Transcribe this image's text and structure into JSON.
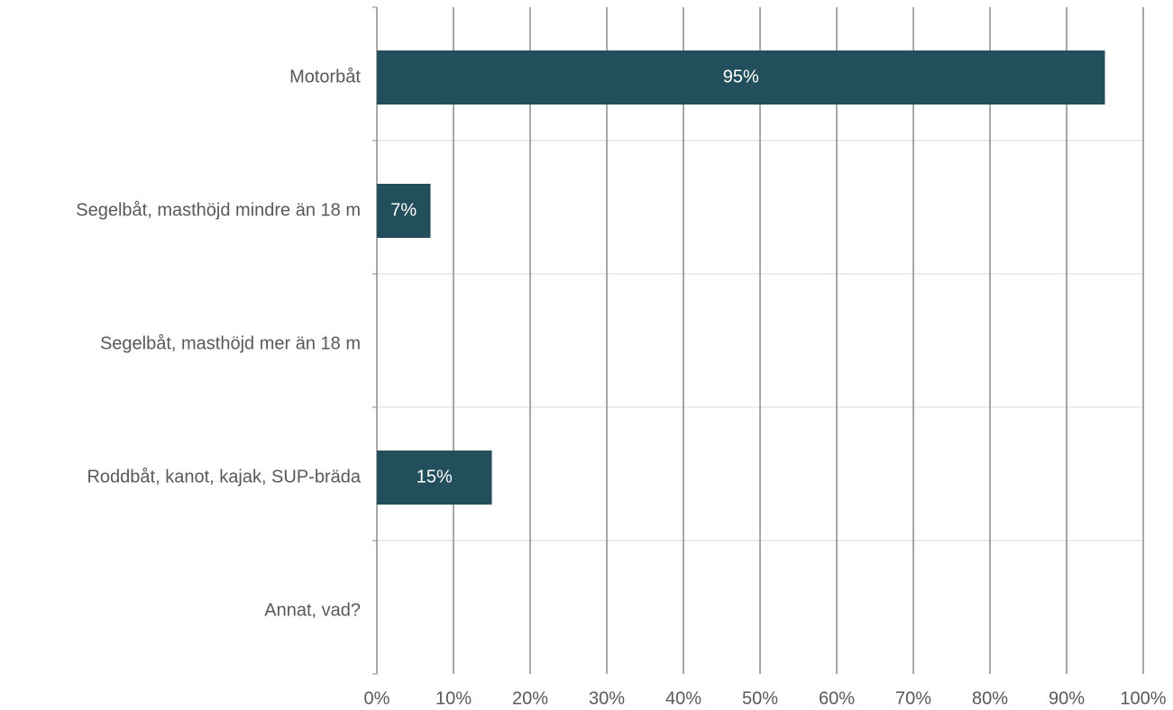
{
  "chart_data": {
    "type": "bar",
    "orientation": "horizontal",
    "categories": [
      "Motorbåt",
      "Segelbåt, masthöjd mindre än 18 m",
      "Segelbåt, masthöjd mer än 18 m",
      "Roddbåt, kanot, kajak, SUP-bräda",
      "Annat, vad?"
    ],
    "values": [
      95,
      7,
      0,
      15,
      0
    ],
    "value_labels": [
      "95%",
      "7%",
      null,
      "15%",
      null
    ],
    "color": "#234e5c",
    "xlim": [
      0,
      100
    ],
    "xticks": [
      {
        "value": 0,
        "label": "0%"
      },
      {
        "value": 10,
        "label": "10%"
      },
      {
        "value": 20,
        "label": "20%"
      },
      {
        "value": 30,
        "label": "30%"
      },
      {
        "value": 40,
        "label": "40%"
      },
      {
        "value": 50,
        "label": "50%"
      },
      {
        "value": 60,
        "label": "60%"
      },
      {
        "value": 70,
        "label": "70%"
      },
      {
        "value": 80,
        "label": "80%"
      },
      {
        "value": 90,
        "label": "90%"
      },
      {
        "value": 100,
        "label": "100%"
      }
    ],
    "grid": true
  }
}
